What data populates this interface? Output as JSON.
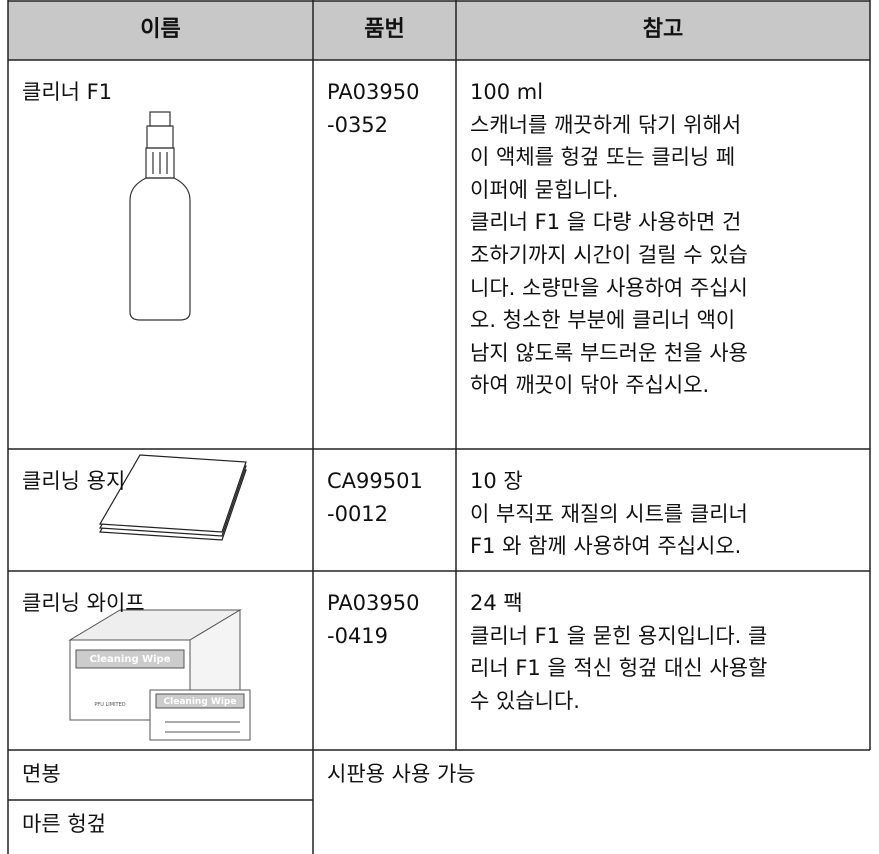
{
  "table": {
    "header": [
      "이름",
      "품번",
      "참고"
    ],
    "rows": [
      {
        "name": "클리너 F1",
        "part": [
          "PA03950",
          "-0352"
        ],
        "note": [
          "100 ml",
          "스캐너를 깨끗하게 닦기 위해서",
          "이 액체를 헝겊 또는 클리닝 페",
          "이퍼에 묻힙니다.",
          "클리너 F1 을 다량 사용하면 건",
          "조하기까지 시간이 걸릴 수 있습",
          "니다. 소량만을 사용하여 주십시",
          "오. 청소한 부분에 클리너 액이",
          "남지 않도록 부드러운 천을 사용",
          "하여 깨끗이 닦아 주십시오."
        ]
      },
      {
        "name": "클리닝 용지",
        "part": [
          "CA99501",
          "-0012"
        ],
        "note": [
          "10 장",
          "이 부직포 재질의 시트를 클리너",
          "F1 와 함께 사용하여 주십시오."
        ]
      },
      {
        "name": "클리닝 와이프",
        "part": [
          "PA03950",
          "-0419"
        ],
        "note": [
          "24 팩",
          "클리너 F1 을 묻힌 용지입니다. 클",
          "리너 F1 을 적신 헝겊 대신 사용할",
          "수 있습니다."
        ]
      },
      {
        "name": "면봉"
      },
      {
        "name": "마른 헝겊"
      }
    ],
    "shared_note": "시판용 사용 가능",
    "wipe_labels": [
      "Cleaning Wipe",
      "Cleaning Wipe",
      "PFU LIMITED"
    ]
  }
}
